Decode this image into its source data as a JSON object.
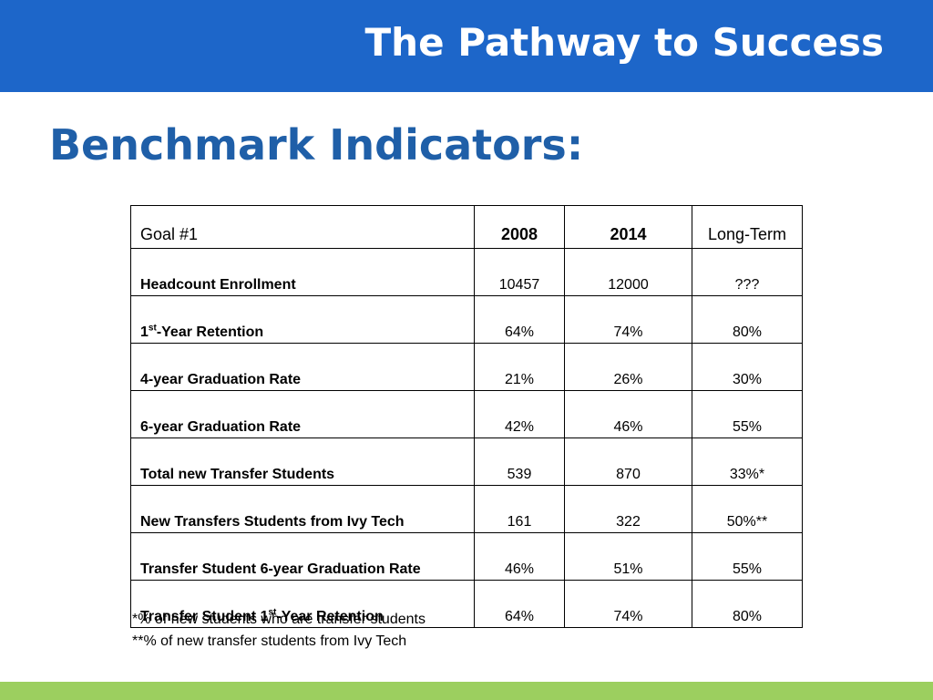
{
  "header": {
    "title": "The Pathway to Success",
    "bg_color": "#1d66c9"
  },
  "slide_title": "Benchmark Indicators:",
  "table": {
    "columns": [
      "Goal #1",
      "2008",
      "2014",
      "Long-Term"
    ],
    "rows": [
      {
        "pre": "Headcount Enrollment",
        "sup": "",
        "post": "",
        "v2008": "10457",
        "v2014": "12000",
        "long": "???"
      },
      {
        "pre": "1",
        "sup": "st",
        "post": "-Year Retention",
        "v2008": "64%",
        "v2014": "74%",
        "long": "80%"
      },
      {
        "pre": "4-year Graduation Rate",
        "sup": "",
        "post": "",
        "v2008": "21%",
        "v2014": "26%",
        "long": "30%"
      },
      {
        "pre": "6-year Graduation Rate",
        "sup": "",
        "post": "",
        "v2008": "42%",
        "v2014": "46%",
        "long": "55%"
      },
      {
        "pre": "Total new Transfer Students",
        "sup": "",
        "post": "",
        "v2008": "539",
        "v2014": "870",
        "long": "33%*"
      },
      {
        "pre": "New Transfers Students from Ivy Tech",
        "sup": "",
        "post": "",
        "v2008": "161",
        "v2014": "322",
        "long": "50%**"
      },
      {
        "pre": "Transfer Student 6-year Graduation Rate",
        "sup": "",
        "post": "",
        "v2008": "46%",
        "v2014": "51%",
        "long": "55%"
      },
      {
        "pre": "Transfer Student 1",
        "sup": "st",
        "post": "-Year Retention",
        "v2008": "64%",
        "v2014": "74%",
        "long": "80%"
      }
    ]
  },
  "footnotes": [
    "*% of new students who are transfer students",
    "**% of new transfer students from Ivy Tech"
  ],
  "footer": {
    "bar_color": "#9ccf5f"
  }
}
